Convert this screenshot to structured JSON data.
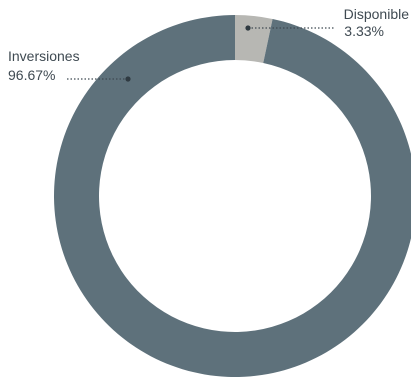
{
  "chart_data": {
    "type": "pie",
    "style": "donut",
    "title": "",
    "slices": [
      {
        "label": "Disponible",
        "value": 3.33,
        "value_label": "3.33%",
        "color": "#b7b7b3"
      },
      {
        "label": "Inversiones",
        "value": 96.67,
        "value_label": "96.67%",
        "color": "#5e717b"
      }
    ],
    "legend": "none",
    "label_style": "leader-lines",
    "background": "#ffffff"
  }
}
